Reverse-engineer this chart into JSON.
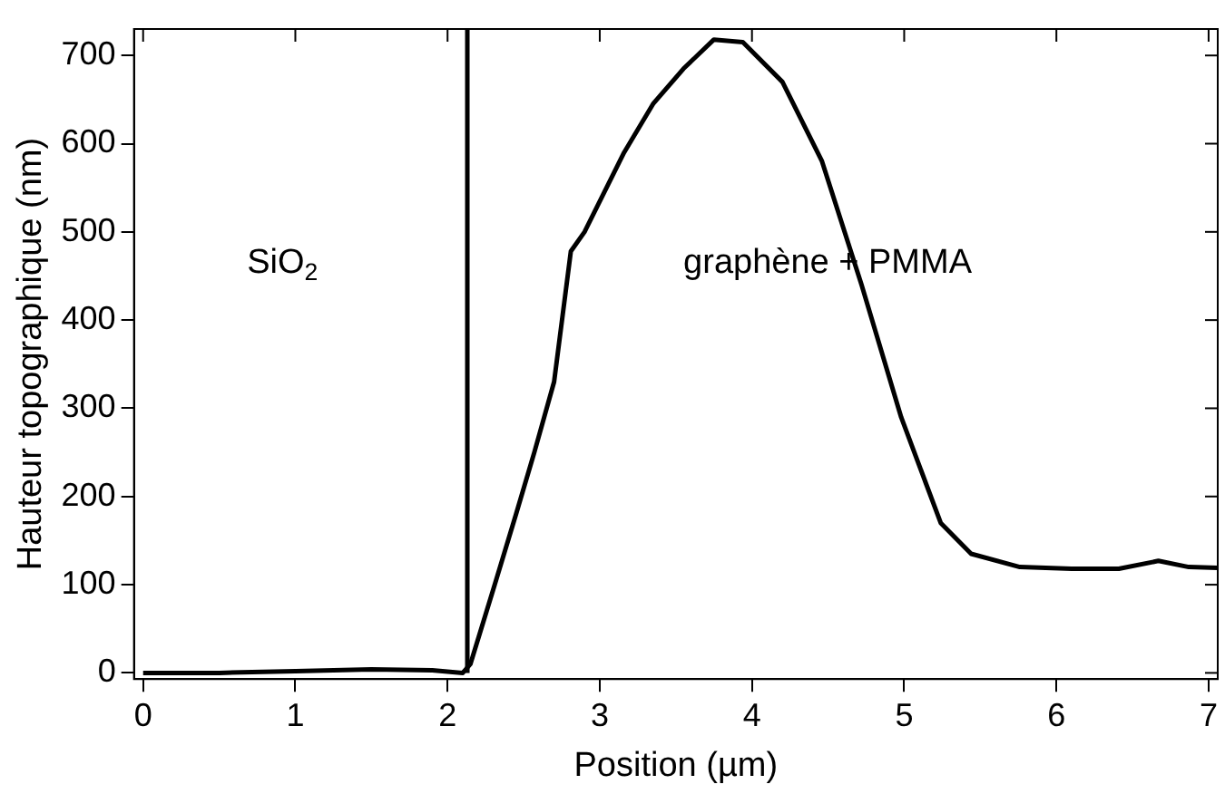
{
  "chart_data": {
    "type": "line",
    "xlabel": "Position (µm)",
    "ylabel": "Hauteur topographique (nm)",
    "xlim": [
      -0.06,
      7.06
    ],
    "ylim": [
      -7,
      730
    ],
    "xticks": [
      0,
      1,
      2,
      3,
      4,
      5,
      6,
      7
    ],
    "yticks": [
      0,
      100,
      200,
      300,
      400,
      500,
      600,
      700
    ],
    "grid": false,
    "legend": false,
    "marker": "none",
    "line_style": "solid",
    "series": [
      {
        "color": "#000000",
        "x": [
          0,
          0.5,
          1,
          1.5,
          1.9,
          2.1,
          2.15,
          2.31,
          2.45,
          2.57,
          2.7,
          2.81,
          2.9,
          3.16,
          3.35,
          3.55,
          3.75,
          3.94,
          4.2,
          4.46,
          4.72,
          4.98,
          5.24,
          5.44,
          5.76,
          6.1,
          6.41,
          6.67,
          6.87,
          7.06
        ],
        "values": [
          0,
          0,
          2,
          4,
          3,
          0,
          10,
          100,
          180,
          250,
          330,
          478,
          500,
          590,
          645,
          685,
          718,
          715,
          670,
          580,
          440,
          290,
          170,
          135,
          120,
          118,
          118,
          127,
          120,
          119
        ]
      }
    ],
    "ref_lines": [
      {
        "axis": "x",
        "value": 2.13,
        "color": "#000000",
        "line_style": "solid"
      }
    ],
    "annotations": [
      "SiO$_{2}$",
      "graphène + PMMA"
    ]
  }
}
